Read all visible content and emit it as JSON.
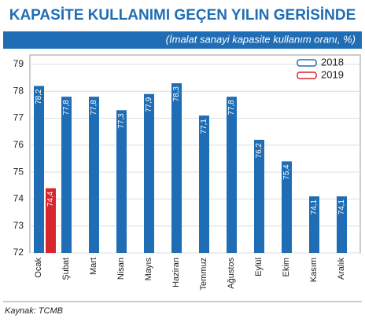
{
  "chart_data": {
    "type": "bar",
    "title": "KAPASİTE KULLANIMI GEÇEN YILIN GERİSİNDE",
    "subtitle": "(İmalat sanayi kapasite kullanım oranı, %)",
    "source": "Kaynak: TCMB",
    "categories": [
      "Ocak",
      "Şubat",
      "Mart",
      "Nisan",
      "Mayıs",
      "Haziran",
      "Temmuz",
      "Ağustos",
      "Eylül",
      "Ekim",
      "Kasım",
      "Aralık"
    ],
    "series": [
      {
        "name": "2018",
        "color": "#1f6db4",
        "values": [
          78.2,
          77.8,
          77.8,
          77.3,
          77.9,
          78.3,
          77.1,
          77.8,
          76.2,
          75.4,
          74.1,
          74.1
        ],
        "value_labels": [
          "78,2",
          "77,8",
          "77,8",
          "77,3",
          "77,9",
          "78,3",
          "77,1",
          "77,8",
          "76,2",
          "75,4",
          "74,1",
          "74,1"
        ]
      },
      {
        "name": "2019",
        "color": "#d7262e",
        "values": [
          74.4,
          null,
          null,
          null,
          null,
          null,
          null,
          null,
          null,
          null,
          null,
          null
        ],
        "value_labels": [
          "74,4",
          null,
          null,
          null,
          null,
          null,
          null,
          null,
          null,
          null,
          null,
          null
        ]
      }
    ],
    "ylim": [
      72,
      79
    ],
    "yticks": [
      72,
      73,
      74,
      75,
      76,
      77,
      78,
      79
    ],
    "grid": true,
    "legend": "upper right"
  }
}
